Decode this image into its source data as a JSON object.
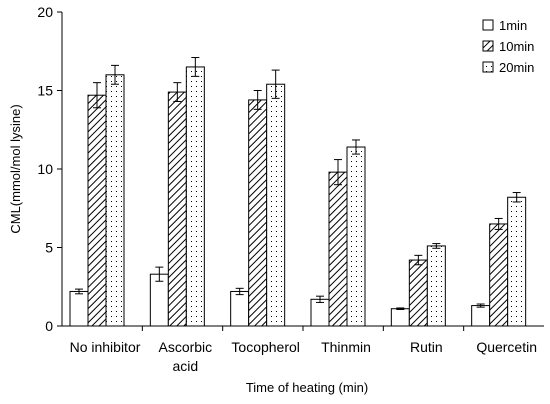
{
  "chart_data": {
    "type": "bar",
    "title": "",
    "xlabel": "Time of heating (min)",
    "ylabel": "CML(mmol/mol lysine)",
    "ylim": [
      0,
      20
    ],
    "yticks": [
      0,
      5,
      10,
      15,
      20
    ],
    "grid": false,
    "legend_position": "top-right",
    "categories": [
      [
        "No inhibitor"
      ],
      [
        "Ascorbic",
        "acid"
      ],
      [
        "Tocopherol"
      ],
      [
        "Thinmin"
      ],
      [
        "Rutin"
      ],
      [
        "Quercetin"
      ]
    ],
    "series": [
      {
        "name": "1min",
        "pattern": "solid-white",
        "values": [
          2.2,
          3.3,
          2.2,
          1.7,
          1.1,
          1.3
        ],
        "errors": [
          0.15,
          0.45,
          0.2,
          0.2,
          0.05,
          0.1
        ]
      },
      {
        "name": "10min",
        "pattern": "diagonal-hatch",
        "values": [
          14.7,
          14.9,
          14.4,
          9.8,
          4.2,
          6.5
        ],
        "errors": [
          0.8,
          0.6,
          0.6,
          0.8,
          0.3,
          0.35
        ]
      },
      {
        "name": "20min",
        "pattern": "dotted",
        "values": [
          16.0,
          16.5,
          15.4,
          11.4,
          5.1,
          8.2
        ],
        "errors": [
          0.6,
          0.6,
          0.9,
          0.45,
          0.15,
          0.3
        ]
      }
    ]
  }
}
